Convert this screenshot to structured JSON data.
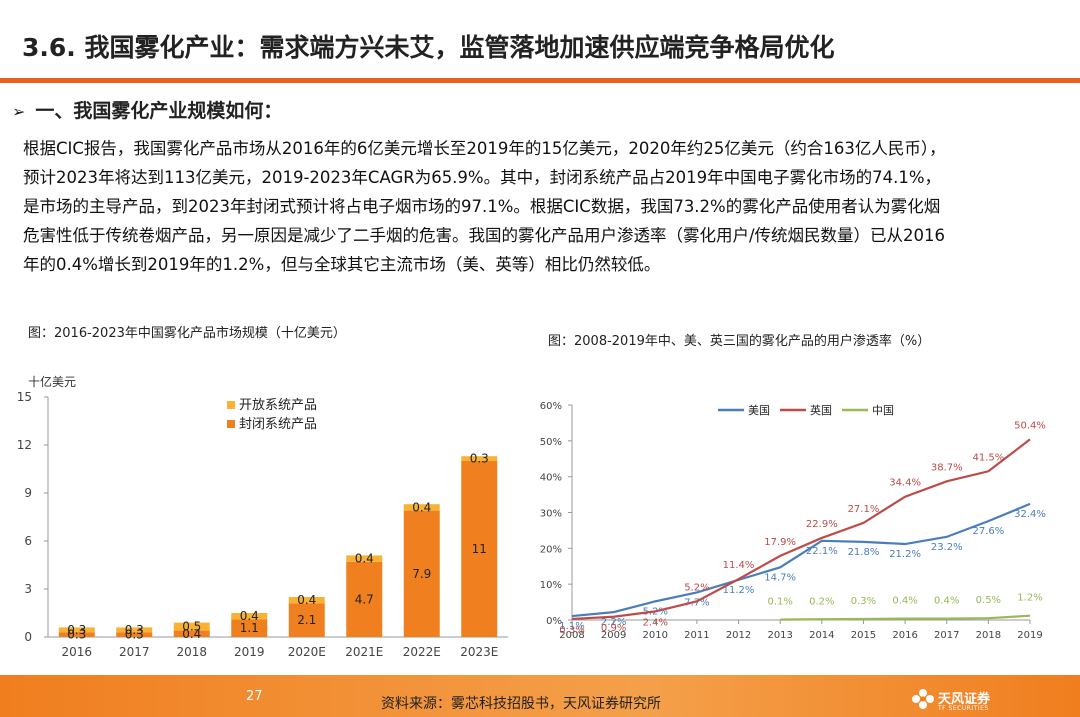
{
  "header": {
    "title": "3.6. 我国雾化产业：需求端方兴未艾，监管落地加速供应端竞争格局优化",
    "section_arrow": "➢",
    "section_title": "一、我国雾化产业规模如何："
  },
  "body_lines": [
    "根据CIC报告，我国雾化产品市场从2016年的6亿美元增长至2019年的15亿美元，2020年约25亿美元（约合163亿人民币），",
    "预计2023年将达到113亿美元，2019-2023年CAGR为65.9%。其中，封闭系统产品占2019年中国电子雾化市场的74.1%，",
    "是市场的主导产品，到2023年封闭式预计将占电子烟市场的97.1%。根据CIC数据，我国73.2%的雾化产品使用者认为雾化烟",
    "危害性低于传统卷烟产品，另一原因是减少了二手烟的危害。我国的雾化产品用户渗透率（雾化用户/传统烟民数量）已从2016",
    "年的0.4%增长到2019年的1.2%，但与全球其它主流市场（美、英等）相比仍然较低。"
  ],
  "figures": {
    "left_title": "图：2016-2023年中国雾化产品市场规模（十亿美元）",
    "right_title": "图：2008-2019年中、美、英三国的雾化产品的用户渗透率（%）"
  },
  "colors": {
    "accent": "#e8601c",
    "open_system": "#f9b233",
    "closed_system": "#f0801f",
    "usa": "#4a7ebb",
    "uk": "#be4b48",
    "china": "#98b954"
  },
  "chart_data": [
    {
      "type": "bar",
      "stacked": true,
      "title": "",
      "ylabel": "十亿美元",
      "xlabel": "",
      "ylim": [
        0,
        15
      ],
      "yticks": [
        "0",
        "3",
        "6",
        "9",
        "12",
        "15"
      ],
      "categories": [
        "2016",
        "2017",
        "2018",
        "2019",
        "2020E",
        "2021E",
        "2022E",
        "2023E"
      ],
      "series": [
        {
          "name": "封闭系统产品",
          "values": [
            0.3,
            0.3,
            0.4,
            1.1,
            2.1,
            4.7,
            7.9,
            11
          ],
          "labels": [
            "0.3",
            "0.3",
            "0.4",
            "1.1",
            "2.1",
            "4.7",
            "7.9",
            "11"
          ]
        },
        {
          "name": "开放系统产品",
          "values": [
            0.3,
            0.3,
            0.5,
            0.4,
            0.4,
            0.4,
            0.4,
            0.3
          ],
          "labels": [
            "0.3",
            "0.3",
            "0.5",
            "0.4",
            "0.4",
            "0.4",
            "0.4",
            "0.3"
          ]
        }
      ],
      "legend": "top-right",
      "grid": false
    },
    {
      "type": "line",
      "title": "",
      "xlabel": "",
      "ylabel": "",
      "ylim": [
        0,
        60
      ],
      "yticks": [
        "0%",
        "10%",
        "20%",
        "30%",
        "40%",
        "50%",
        "60%"
      ],
      "x": [
        "2008",
        "2009",
        "2010",
        "2011",
        "2012",
        "2013",
        "2014",
        "2015",
        "2016",
        "2017",
        "2018",
        "2019"
      ],
      "series": [
        {
          "name": "美国",
          "values": [
            1.1,
            2.2,
            5.2,
            7.7,
            11.2,
            14.7,
            22.1,
            21.8,
            21.2,
            23.2,
            27.6,
            32.4
          ],
          "labels": [
            "1.1%",
            "2.2%",
            "5.2%",
            "7.7%",
            "11.2%",
            "14.7%",
            "22.1%",
            "21.8%",
            "21.2%",
            "23.2%",
            "27.6%",
            "32.4%"
          ]
        },
        {
          "name": "英国",
          "values": [
            0.3,
            0.9,
            2.4,
            5.2,
            11.4,
            17.9,
            22.9,
            27.1,
            34.4,
            38.7,
            41.5,
            50.4
          ],
          "labels": [
            "0.3%",
            "0.9%",
            "2.4%",
            "5.2%",
            "11.4%",
            "17.9%",
            "22.9%",
            "27.1%",
            "34.4%",
            "38.7%",
            "41.5%",
            "50.4%"
          ]
        },
        {
          "name": "中国",
          "values": [
            null,
            null,
            null,
            null,
            null,
            0.1,
            0.2,
            0.3,
            0.4,
            0.4,
            0.5,
            1.2
          ],
          "labels": [
            "",
            "",
            "",
            "",
            "",
            "0.1%",
            "0.2%",
            "0.3%",
            "0.4%",
            "0.4%",
            "0.5%",
            "1.2%"
          ]
        }
      ],
      "legend": "top-left",
      "grid": false
    }
  ],
  "footer": {
    "page_number": "27",
    "source": "资料来源：雾芯科技招股书，天风证券研究所",
    "logo_name": "天风证券",
    "logo_sub": "TF SECURITIES"
  }
}
